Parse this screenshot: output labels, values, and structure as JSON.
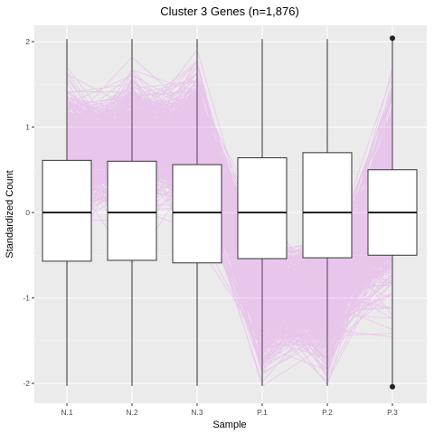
{
  "chart_data": {
    "type": "box",
    "title": "Cluster 3 Genes (n=1,876)",
    "xlabel": "Sample",
    "ylabel": "Standardized Count",
    "categories": [
      "N.1",
      "N.2",
      "N.3",
      "P.1",
      "P.2",
      "P.3"
    ],
    "ylim": [
      -2.1,
      2.1
    ],
    "yticks": [
      -2,
      -1,
      0,
      1,
      2
    ],
    "ytick_labels": [
      "-2",
      "-1",
      "0",
      "1",
      "2"
    ],
    "grid": true,
    "boxes": [
      {
        "category": "N.1",
        "q1": -0.57,
        "median": 0.0,
        "q3": 0.61,
        "whisker_low": -2.03,
        "whisker_high": 2.03,
        "outliers": []
      },
      {
        "category": "N.2",
        "q1": -0.56,
        "median": 0.0,
        "q3": 0.6,
        "whisker_low": -2.03,
        "whisker_high": 2.03,
        "outliers": []
      },
      {
        "category": "N.3",
        "q1": -0.59,
        "median": 0.0,
        "q3": 0.56,
        "whisker_low": -2.03,
        "whisker_high": 2.03,
        "outliers": []
      },
      {
        "category": "P.1",
        "q1": -0.54,
        "median": 0.0,
        "q3": 0.64,
        "whisker_low": -2.03,
        "whisker_high": 2.03,
        "outliers": []
      },
      {
        "category": "P.2",
        "q1": -0.53,
        "median": 0.0,
        "q3": 0.7,
        "whisker_low": -2.03,
        "whisker_high": 2.03,
        "outliers": []
      },
      {
        "category": "P.3",
        "q1": -0.5,
        "median": 0.0,
        "q3": 0.5,
        "whisker_low": -2.02,
        "whisker_high": 2.02,
        "outliers": [
          2.04,
          -2.04
        ]
      }
    ],
    "profile_lines": {
      "count": 1876,
      "color": "#dd44ee",
      "typical_means": [
        0.7,
        0.8,
        0.8,
        -1.0,
        -1.0,
        0.2
      ]
    }
  }
}
